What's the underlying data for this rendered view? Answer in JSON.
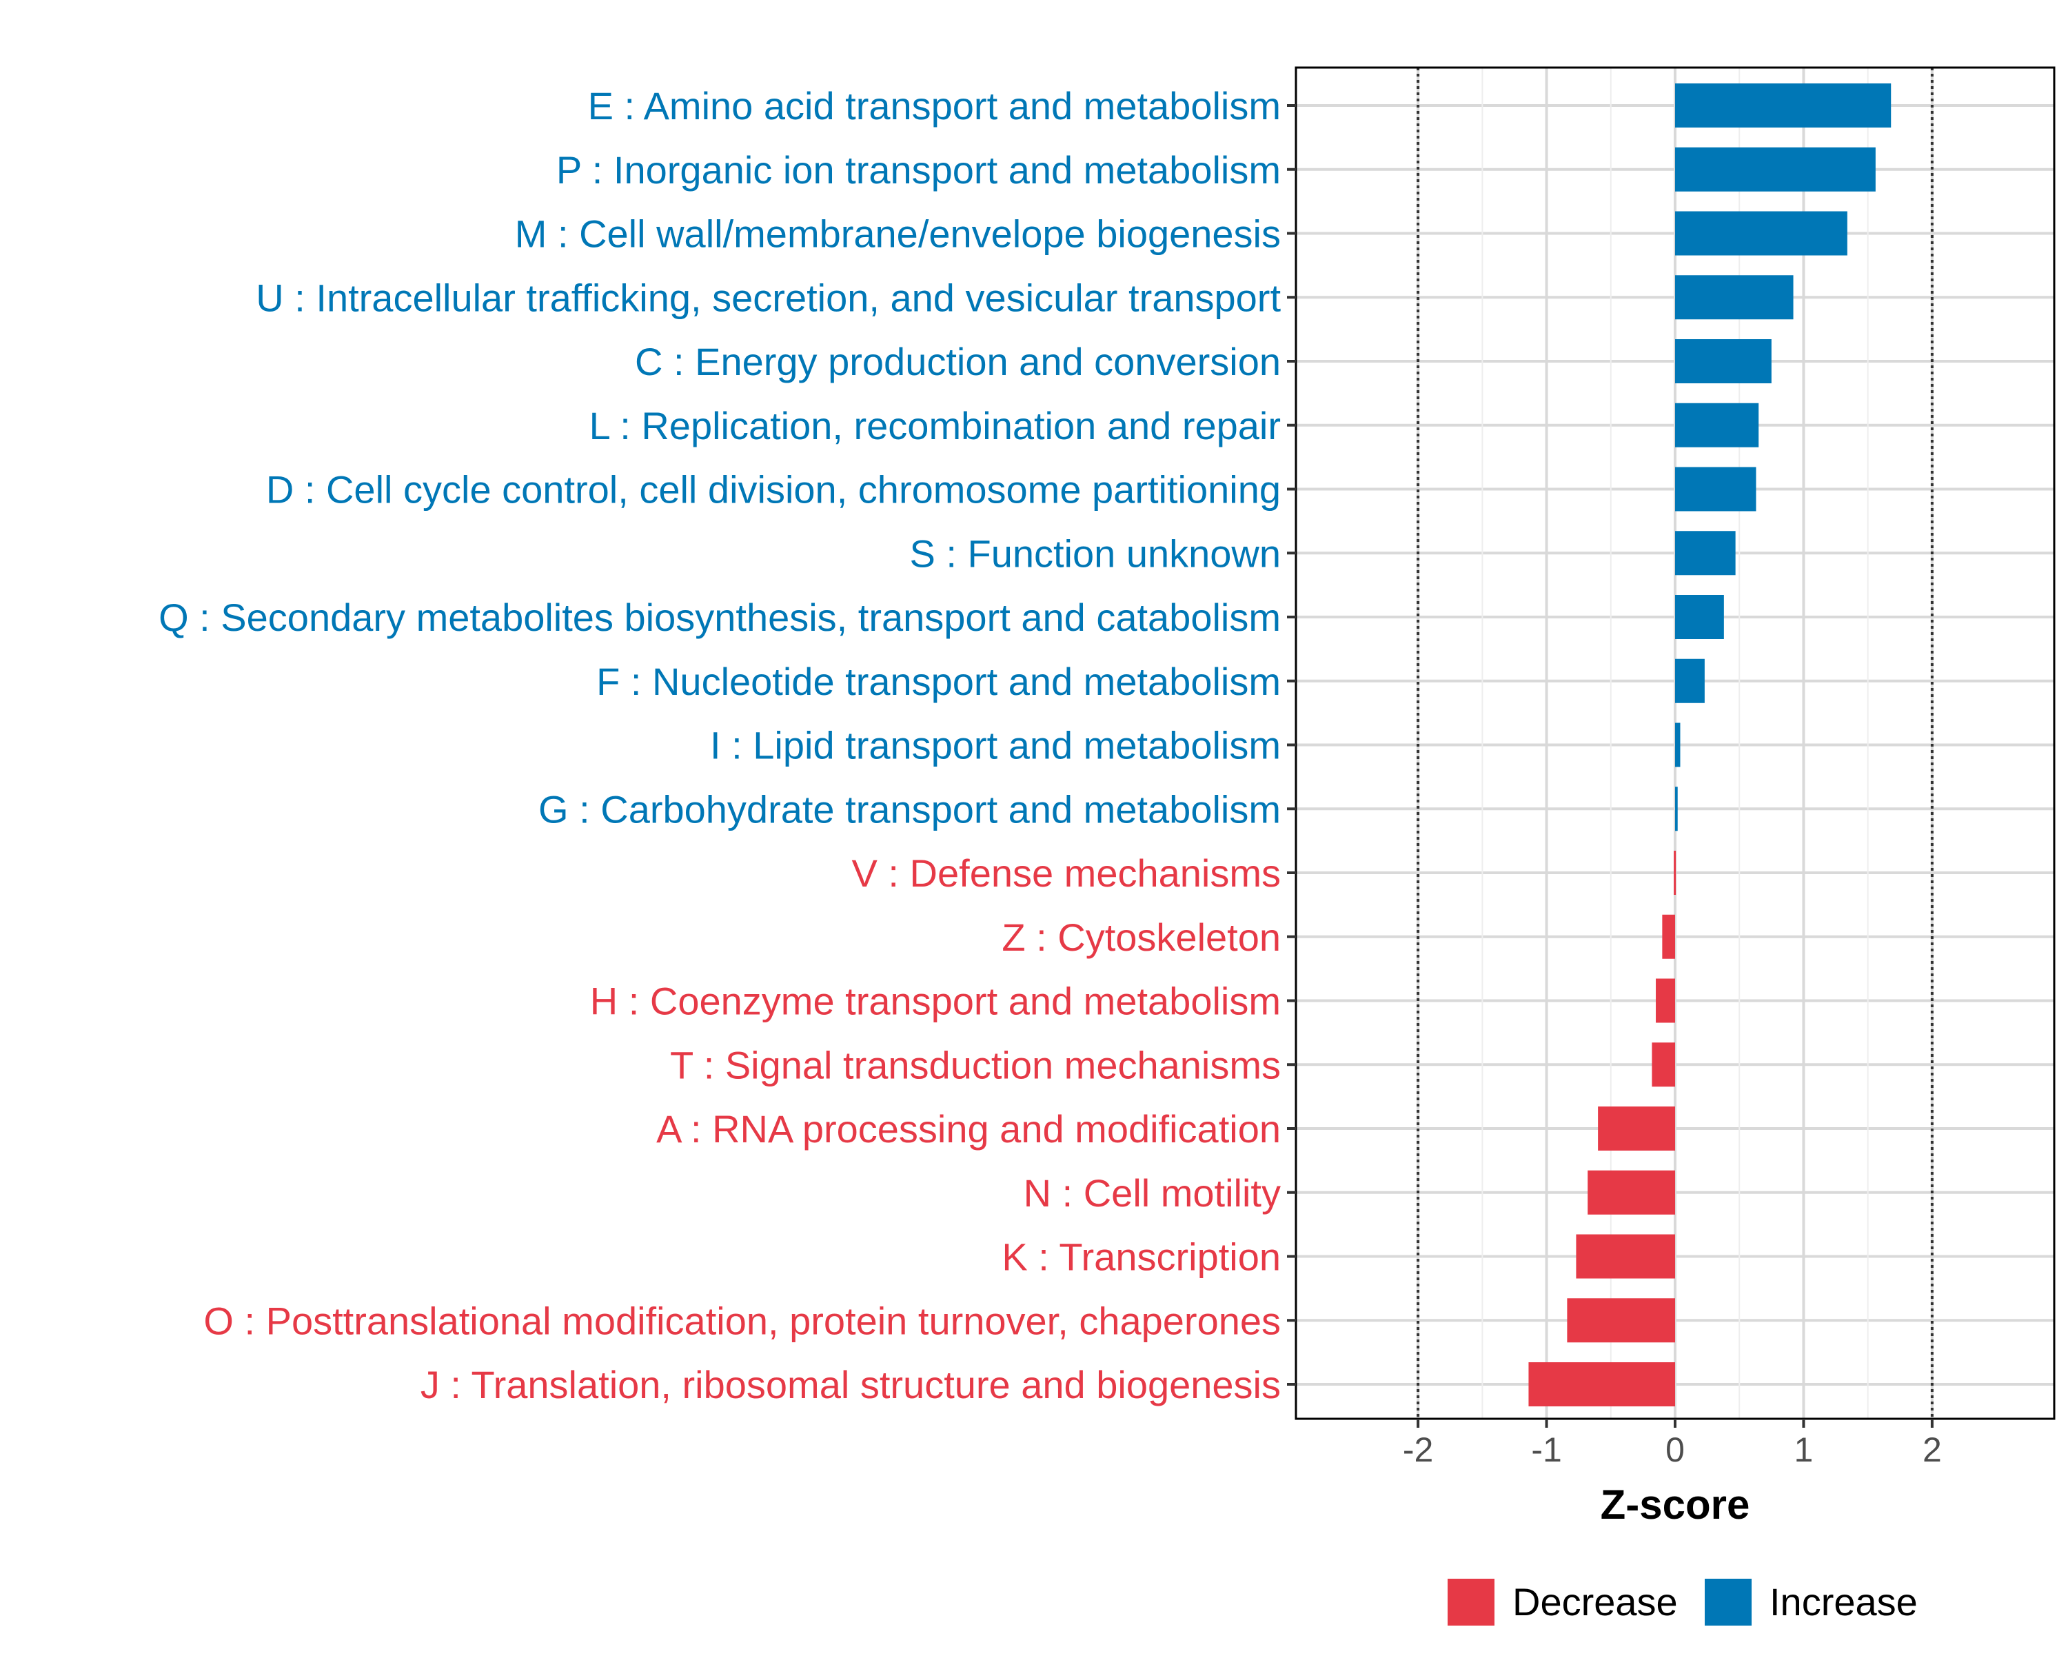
{
  "chart_data": {
    "type": "bar",
    "orientation": "horizontal",
    "xlabel": "Z-score",
    "ylabel": "",
    "xlim": [
      -2.95,
      2.95
    ],
    "x_ticks": [
      -2,
      -1,
      0,
      1,
      2
    ],
    "x_tick_labels": [
      "-2",
      "-1",
      "0",
      "1",
      "2"
    ],
    "reference_lines": [
      -2,
      2
    ],
    "grid": true,
    "legend_position": "bottom-right",
    "colors": {
      "Decrease": "#e63946",
      "Increase": "#0077b6"
    },
    "legend": [
      {
        "label": "Decrease",
        "color": "#e63946"
      },
      {
        "label": "Increase",
        "color": "#0077b6"
      }
    ],
    "categories": [
      {
        "label": "E : Amino acid transport and metabolism",
        "value": 1.68,
        "group": "Increase"
      },
      {
        "label": "P : Inorganic ion transport and metabolism",
        "value": 1.56,
        "group": "Increase"
      },
      {
        "label": "M : Cell wall/membrane/envelope biogenesis",
        "value": 1.34,
        "group": "Increase"
      },
      {
        "label": "U : Intracellular trafficking, secretion, and vesicular transport",
        "value": 0.92,
        "group": "Increase"
      },
      {
        "label": "C : Energy production and conversion",
        "value": 0.75,
        "group": "Increase"
      },
      {
        "label": "L : Replication, recombination and repair",
        "value": 0.65,
        "group": "Increase"
      },
      {
        "label": "D : Cell cycle control, cell division, chromosome partitioning",
        "value": 0.63,
        "group": "Increase"
      },
      {
        "label": "S : Function unknown",
        "value": 0.47,
        "group": "Increase"
      },
      {
        "label": "Q : Secondary metabolites biosynthesis, transport and catabolism",
        "value": 0.38,
        "group": "Increase"
      },
      {
        "label": "F : Nucleotide transport and metabolism",
        "value": 0.23,
        "group": "Increase"
      },
      {
        "label": "I : Lipid transport and metabolism",
        "value": 0.04,
        "group": "Increase"
      },
      {
        "label": "G : Carbohydrate transport and metabolism",
        "value": 0.02,
        "group": "Increase"
      },
      {
        "label": "V : Defense mechanisms",
        "value": -0.01,
        "group": "Decrease"
      },
      {
        "label": "Z : Cytoskeleton",
        "value": -0.1,
        "group": "Decrease"
      },
      {
        "label": "H : Coenzyme transport and metabolism",
        "value": -0.15,
        "group": "Decrease"
      },
      {
        "label": "T : Signal transduction mechanisms",
        "value": -0.18,
        "group": "Decrease"
      },
      {
        "label": "A : RNA processing and modification",
        "value": -0.6,
        "group": "Decrease"
      },
      {
        "label": "N : Cell motility",
        "value": -0.68,
        "group": "Decrease"
      },
      {
        "label": "K : Transcription",
        "value": -0.77,
        "group": "Decrease"
      },
      {
        "label": "O : Posttranslational modification, protein turnover, chaperones",
        "value": -0.84,
        "group": "Decrease"
      },
      {
        "label": "J : Translation, ribosomal structure and biogenesis",
        "value": -1.14,
        "group": "Decrease"
      }
    ]
  }
}
